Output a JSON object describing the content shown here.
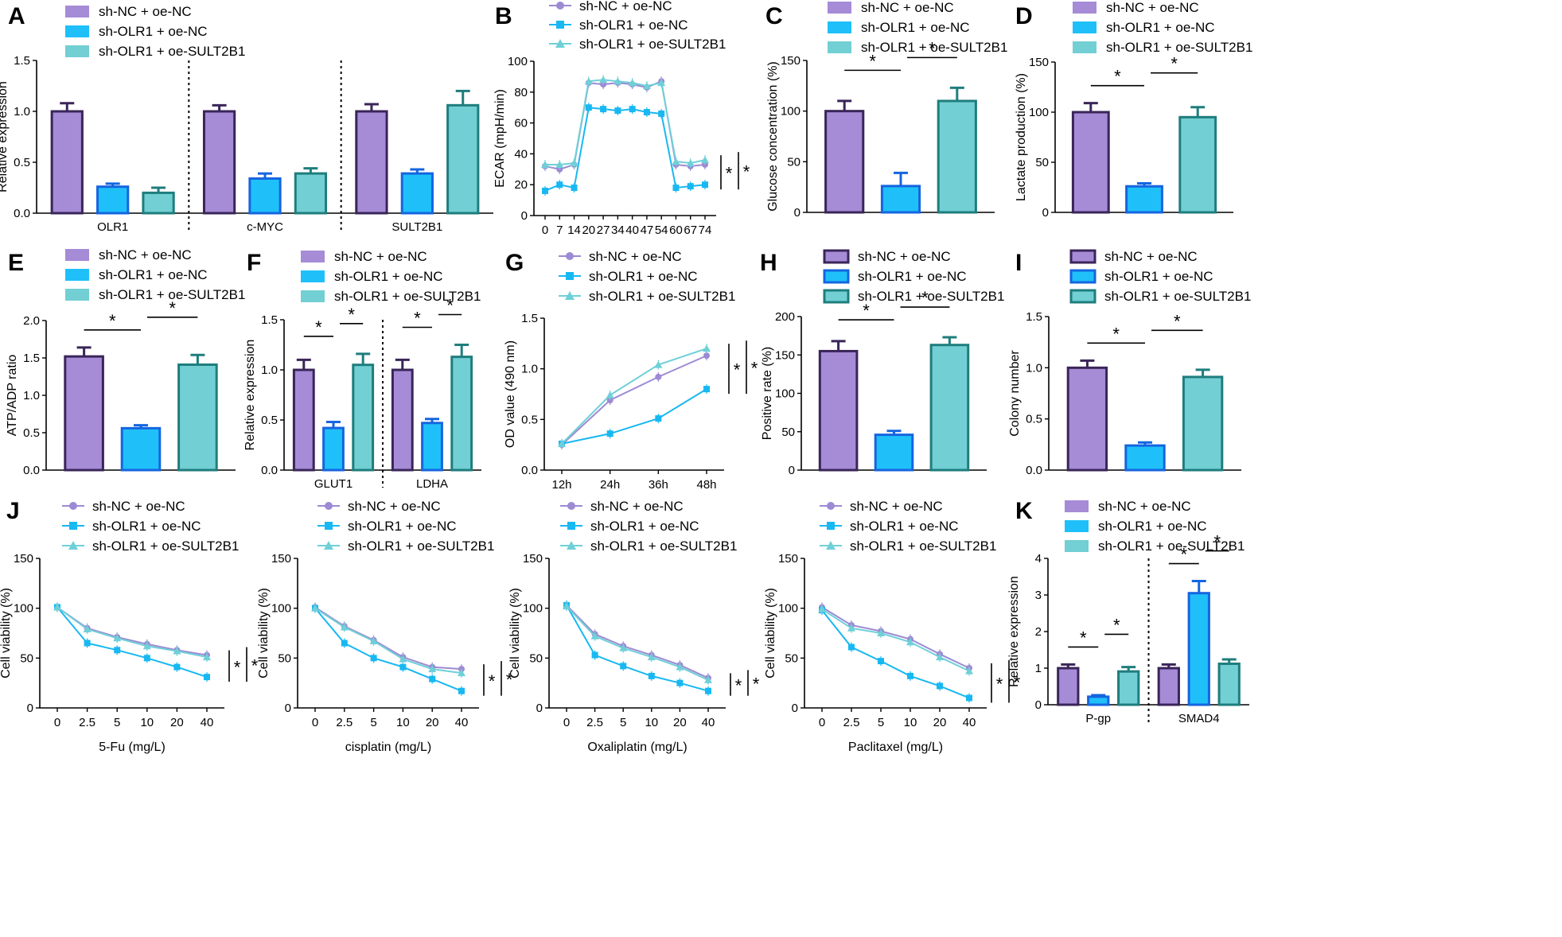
{
  "colors": {
    "purple": "#a68bd6",
    "purple_dark": "#3a2559",
    "blue": "#1fc0f9",
    "blue_dark": "#1565e0",
    "teal": "#72cfd3",
    "teal_dark": "#1f7d7d",
    "line_purple": "#9d8ad4",
    "line_blue": "#18b8f2",
    "line_teal": "#6fd0d8"
  },
  "legend_items": [
    "sh-NC + oe-NC",
    "sh-OLR1 + oe-NC",
    "sh-OLR1 + oe-SULT2B1"
  ],
  "sig": "*",
  "chart_data": [
    {
      "id": "A",
      "panel": "A",
      "type": "bar",
      "title": "",
      "xlabel": "",
      "ylabel": "Relative expression",
      "ylim": [
        0,
        1.5
      ],
      "yticks": [
        "0.0",
        "0.5",
        "1.0",
        "1.5"
      ],
      "groups": [
        "OLR1",
        "c-MYC",
        "SULT2B1"
      ],
      "series": [
        {
          "name": "sh-NC + oe-NC",
          "values": [
            1.0,
            1.0,
            1.0
          ],
          "errors": [
            0.08,
            0.06,
            0.07
          ]
        },
        {
          "name": "sh-OLR1 + oe-NC",
          "values": [
            0.26,
            0.34,
            0.39
          ],
          "errors": [
            0.03,
            0.05,
            0.04
          ]
        },
        {
          "name": "sh-OLR1 + oe-SULT2B1",
          "values": [
            0.2,
            0.39,
            1.06
          ],
          "errors": [
            0.05,
            0.05,
            0.14
          ]
        }
      ],
      "separators": true,
      "sig": []
    },
    {
      "id": "B",
      "panel": "B",
      "type": "line",
      "title": "",
      "xlabel": "",
      "ylabel": "ECAR (mpH/min)",
      "ylim": [
        0,
        100
      ],
      "yticks": [
        "0",
        "20",
        "40",
        "60",
        "80",
        "100"
      ],
      "x": [
        "0",
        "7",
        "14",
        "20",
        "27",
        "34",
        "40",
        "47",
        "54",
        "60",
        "67",
        "74"
      ],
      "series": [
        {
          "name": "sh-NC + oe-NC",
          "values": [
            32,
            30,
            33,
            86,
            85,
            86,
            85,
            83,
            87,
            33,
            32,
            33
          ]
        },
        {
          "name": "sh-OLR1 + oe-NC",
          "values": [
            16,
            20,
            18,
            70,
            69,
            68,
            69,
            67,
            66,
            18,
            19,
            20
          ]
        },
        {
          "name": "sh-OLR1 + oe-SULT2B1",
          "values": [
            33,
            33,
            34,
            87,
            88,
            87,
            86,
            84,
            86,
            35,
            34,
            36
          ]
        }
      ],
      "sig": [
        "*",
        "*"
      ]
    },
    {
      "id": "C",
      "panel": "C",
      "type": "bar",
      "title": "",
      "xlabel": "",
      "ylabel": "Glucose concentration (%)",
      "ylim": [
        0,
        150
      ],
      "yticks": [
        "0",
        "50",
        "100",
        "150"
      ],
      "groups": [
        ""
      ],
      "series": [
        {
          "name": "sh-NC + oe-NC",
          "values": [
            100
          ],
          "errors": [
            10
          ]
        },
        {
          "name": "sh-OLR1 + oe-NC",
          "values": [
            26
          ],
          "errors": [
            13
          ]
        },
        {
          "name": "sh-OLR1 + oe-SULT2B1",
          "values": [
            110
          ],
          "errors": [
            13
          ]
        }
      ],
      "sig": [
        "*",
        "*"
      ]
    },
    {
      "id": "D",
      "panel": "D",
      "type": "bar",
      "title": "",
      "xlabel": "",
      "ylabel": "Lactate production (%)",
      "ylim": [
        0,
        150
      ],
      "yticks": [
        "0",
        "50",
        "100",
        "150"
      ],
      "groups": [
        ""
      ],
      "series": [
        {
          "name": "sh-NC + oe-NC",
          "values": [
            100
          ],
          "errors": [
            9
          ]
        },
        {
          "name": "sh-OLR1 + oe-NC",
          "values": [
            26
          ],
          "errors": [
            3
          ]
        },
        {
          "name": "sh-OLR1 + oe-SULT2B1",
          "values": [
            95
          ],
          "errors": [
            10
          ]
        }
      ],
      "sig": [
        "*",
        "*"
      ]
    },
    {
      "id": "E",
      "panel": "E",
      "type": "bar",
      "title": "",
      "xlabel": "",
      "ylabel": "ATP/ADP ratio",
      "ylim": [
        0,
        2.0
      ],
      "yticks": [
        "0.0",
        "0.5",
        "1.0",
        "1.5",
        "2.0"
      ],
      "groups": [
        ""
      ],
      "series": [
        {
          "name": "sh-NC + oe-NC",
          "values": [
            1.52
          ],
          "errors": [
            0.12
          ]
        },
        {
          "name": "sh-OLR1 + oe-NC",
          "values": [
            0.56
          ],
          "errors": [
            0.04
          ]
        },
        {
          "name": "sh-OLR1 + oe-SULT2B1",
          "values": [
            1.41
          ],
          "errors": [
            0.13
          ]
        }
      ],
      "sig": [
        "*",
        "*"
      ]
    },
    {
      "id": "F",
      "panel": "F",
      "type": "bar",
      "title": "",
      "xlabel": "",
      "ylabel": "Relative expression",
      "ylim": [
        0,
        1.5
      ],
      "yticks": [
        "0.0",
        "0.5",
        "1.0",
        "1.5"
      ],
      "groups": [
        "GLUT1",
        "LDHA"
      ],
      "series": [
        {
          "name": "sh-NC + oe-NC",
          "values": [
            1.0,
            1.0
          ],
          "errors": [
            0.1,
            0.1
          ]
        },
        {
          "name": "sh-OLR1 + oe-NC",
          "values": [
            0.42,
            0.47
          ],
          "errors": [
            0.06,
            0.04
          ]
        },
        {
          "name": "sh-OLR1 + oe-SULT2B1",
          "values": [
            1.05,
            1.13
          ],
          "errors": [
            0.11,
            0.12
          ]
        }
      ],
      "separators": true,
      "sig": [
        "*",
        "*",
        "*",
        "*"
      ]
    },
    {
      "id": "G",
      "panel": "G",
      "type": "line",
      "title": "",
      "xlabel": "",
      "ylabel": "OD value (490 nm)",
      "ylim": [
        0,
        1.5
      ],
      "yticks": [
        "0.0",
        "0.5",
        "1.0",
        "1.5"
      ],
      "x": [
        "12h",
        "24h",
        "36h",
        "48h"
      ],
      "series": [
        {
          "name": "sh-NC + oe-NC",
          "values": [
            0.25,
            0.69,
            0.92,
            1.13
          ]
        },
        {
          "name": "sh-OLR1 + oe-NC",
          "values": [
            0.26,
            0.36,
            0.51,
            0.8
          ]
        },
        {
          "name": "sh-OLR1 + oe-SULT2B1",
          "values": [
            0.26,
            0.74,
            1.04,
            1.2
          ]
        }
      ],
      "sig": [
        "*",
        "*"
      ]
    },
    {
      "id": "H",
      "panel": "H",
      "type": "bar",
      "title": "",
      "xlabel": "",
      "ylabel": "Positive rate (%)",
      "ylim": [
        0,
        200
      ],
      "yticks": [
        "0",
        "50",
        "100",
        "150",
        "200"
      ],
      "groups": [
        ""
      ],
      "series": [
        {
          "name": "sh-NC + oe-NC",
          "values": [
            155
          ],
          "errors": [
            13
          ]
        },
        {
          "name": "sh-OLR1 + oe-NC",
          "values": [
            46
          ],
          "errors": [
            5
          ]
        },
        {
          "name": "sh-OLR1 + oe-SULT2B1",
          "values": [
            163
          ],
          "errors": [
            10
          ]
        }
      ],
      "sig": [
        "*",
        "*"
      ]
    },
    {
      "id": "I",
      "panel": "I",
      "type": "bar",
      "title": "",
      "xlabel": "",
      "ylabel": "Colony number",
      "ylim": [
        0,
        1.5
      ],
      "yticks": [
        "0.0",
        "0.5",
        "1.0",
        "1.5"
      ],
      "groups": [
        ""
      ],
      "series": [
        {
          "name": "sh-NC + oe-NC",
          "values": [
            1.0
          ],
          "errors": [
            0.07
          ]
        },
        {
          "name": "sh-OLR1 + oe-NC",
          "values": [
            0.24
          ],
          "errors": [
            0.03
          ]
        },
        {
          "name": "sh-OLR1 + oe-SULT2B1",
          "values": [
            0.91
          ],
          "errors": [
            0.07
          ]
        }
      ],
      "sig": [
        "*",
        "*"
      ]
    },
    {
      "id": "J1",
      "panel": "J",
      "type": "line",
      "title": "",
      "xlabel": "5-Fu (mg/L)",
      "ylabel": "Cell viability (%)",
      "ylim": [
        0,
        150
      ],
      "yticks": [
        "0",
        "50",
        "100",
        "150"
      ],
      "x": [
        "0",
        "2.5",
        "5",
        "10",
        "20",
        "40"
      ],
      "series": [
        {
          "name": "sh-NC + oe-NC",
          "values": [
            101,
            80,
            71,
            64,
            58,
            53
          ]
        },
        {
          "name": "sh-OLR1 + oe-NC",
          "values": [
            101,
            65,
            58,
            50,
            41,
            31
          ]
        },
        {
          "name": "sh-OLR1 + oe-SULT2B1",
          "values": [
            101,
            79,
            70,
            62,
            57,
            51
          ]
        }
      ],
      "sig": [
        "*",
        "*"
      ]
    },
    {
      "id": "J2",
      "panel": "",
      "type": "line",
      "title": "",
      "xlabel": "cisplatin (mg/L)",
      "ylabel": "Cell viability (%)",
      "ylim": [
        0,
        150
      ],
      "yticks": [
        "0",
        "50",
        "100",
        "150"
      ],
      "x": [
        "0",
        "2.5",
        "5",
        "10",
        "20",
        "40"
      ],
      "series": [
        {
          "name": "sh-NC + oe-NC",
          "values": [
            101,
            82,
            68,
            51,
            41,
            39
          ]
        },
        {
          "name": "sh-OLR1 + oe-NC",
          "values": [
            100,
            65,
            50,
            41,
            29,
            17
          ]
        },
        {
          "name": "sh-OLR1 + oe-SULT2B1",
          "values": [
            100,
            81,
            67,
            49,
            39,
            35
          ]
        }
      ],
      "sig": [
        "*",
        "*"
      ]
    },
    {
      "id": "J3",
      "panel": "",
      "type": "line",
      "title": "",
      "xlabel": "Oxaliplatin (mg/L)",
      "ylabel": "Cell viability (%)",
      "ylim": [
        0,
        150
      ],
      "yticks": [
        "0",
        "50",
        "100",
        "150"
      ],
      "x": [
        "0",
        "2.5",
        "5",
        "10",
        "20",
        "40"
      ],
      "series": [
        {
          "name": "sh-NC + oe-NC",
          "values": [
            103,
            74,
            62,
            53,
            43,
            30
          ]
        },
        {
          "name": "sh-OLR1 + oe-NC",
          "values": [
            103,
            53,
            42,
            32,
            25,
            17
          ]
        },
        {
          "name": "sh-OLR1 + oe-SULT2B1",
          "values": [
            102,
            72,
            60,
            51,
            41,
            28
          ]
        }
      ],
      "sig": [
        "*",
        "*"
      ]
    },
    {
      "id": "J4",
      "panel": "",
      "type": "line",
      "title": "",
      "xlabel": "Paclitaxel (mg/L)",
      "ylabel": "Cell viability (%)",
      "ylim": [
        0,
        150
      ],
      "yticks": [
        "0",
        "50",
        "100",
        "150"
      ],
      "x": [
        "0",
        "2.5",
        "5",
        "10",
        "20",
        "40"
      ],
      "series": [
        {
          "name": "sh-NC + oe-NC",
          "values": [
            101,
            83,
            77,
            69,
            54,
            40
          ]
        },
        {
          "name": "sh-OLR1 + oe-NC",
          "values": [
            98,
            61,
            47,
            32,
            22,
            10
          ]
        },
        {
          "name": "sh-OLR1 + oe-SULT2B1",
          "values": [
            99,
            80,
            75,
            66,
            51,
            37
          ]
        }
      ],
      "sig": [
        "*",
        "*"
      ]
    },
    {
      "id": "K",
      "panel": "K",
      "type": "bar",
      "title": "",
      "xlabel": "",
      "ylabel": "Relative  expression",
      "ylim": [
        0,
        4
      ],
      "yticks": [
        "0",
        "1",
        "2",
        "3",
        "4"
      ],
      "groups": [
        "P-gp",
        "SMAD4"
      ],
      "series": [
        {
          "name": "sh-NC + oe-NC",
          "values": [
            1.0,
            1.0
          ],
          "errors": [
            0.1,
            0.1
          ]
        },
        {
          "name": "sh-OLR1 + oe-NC",
          "values": [
            0.22,
            3.05
          ],
          "errors": [
            0.04,
            0.33
          ]
        },
        {
          "name": "sh-OLR1 + oe-SULT2B1",
          "values": [
            0.91,
            1.12
          ],
          "errors": [
            0.12,
            0.12
          ]
        }
      ],
      "separators": true,
      "sig": [
        "*",
        "*",
        "*",
        "*"
      ]
    }
  ]
}
